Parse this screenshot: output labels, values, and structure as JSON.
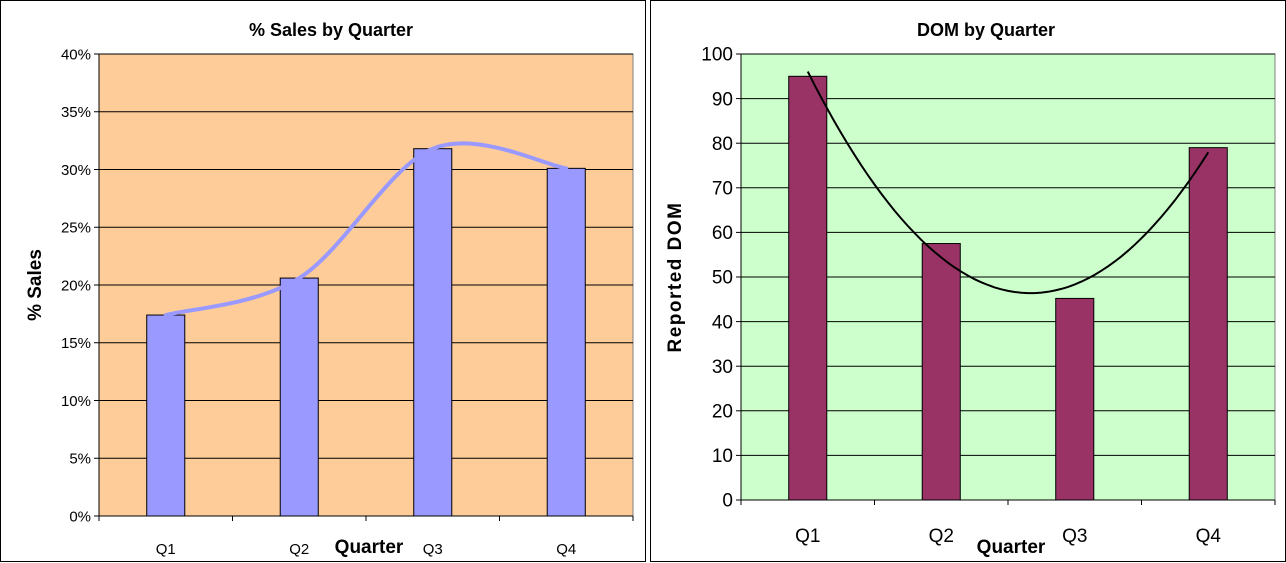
{
  "chart_data": [
    {
      "type": "bar",
      "title": "% Sales by Quarter",
      "xlabel": "Quarter",
      "ylabel": "% Sales",
      "categories": [
        "Q1",
        "Q2",
        "Q3",
        "Q4"
      ],
      "values": [
        17.4,
        20.6,
        31.8,
        30.1
      ],
      "yticks": [
        "0%",
        "5%",
        "10%",
        "15%",
        "20%",
        "25%",
        "30%",
        "35%",
        "40%"
      ],
      "ylim": [
        0,
        40
      ],
      "trendline": "smooth",
      "grid": true,
      "colors": {
        "plot_bg": "#fdcc99",
        "bar": "#9999ff",
        "trend": "#9999ff"
      }
    },
    {
      "type": "bar",
      "title": "DOM by Quarter",
      "xlabel": "Quarter",
      "ylabel": "Reported DOM",
      "categories": [
        "Q1",
        "Q2",
        "Q3",
        "Q4"
      ],
      "values": [
        95,
        57.5,
        45.2,
        79
      ],
      "yticks": [
        "0",
        "10",
        "20",
        "30",
        "40",
        "50",
        "60",
        "70",
        "80",
        "90",
        "100"
      ],
      "ylim": [
        0,
        100
      ],
      "trendline": "polynomial",
      "grid": true,
      "colors": {
        "plot_bg": "#ccffcc",
        "bar": "#993366",
        "trend": "#000000"
      }
    }
  ]
}
